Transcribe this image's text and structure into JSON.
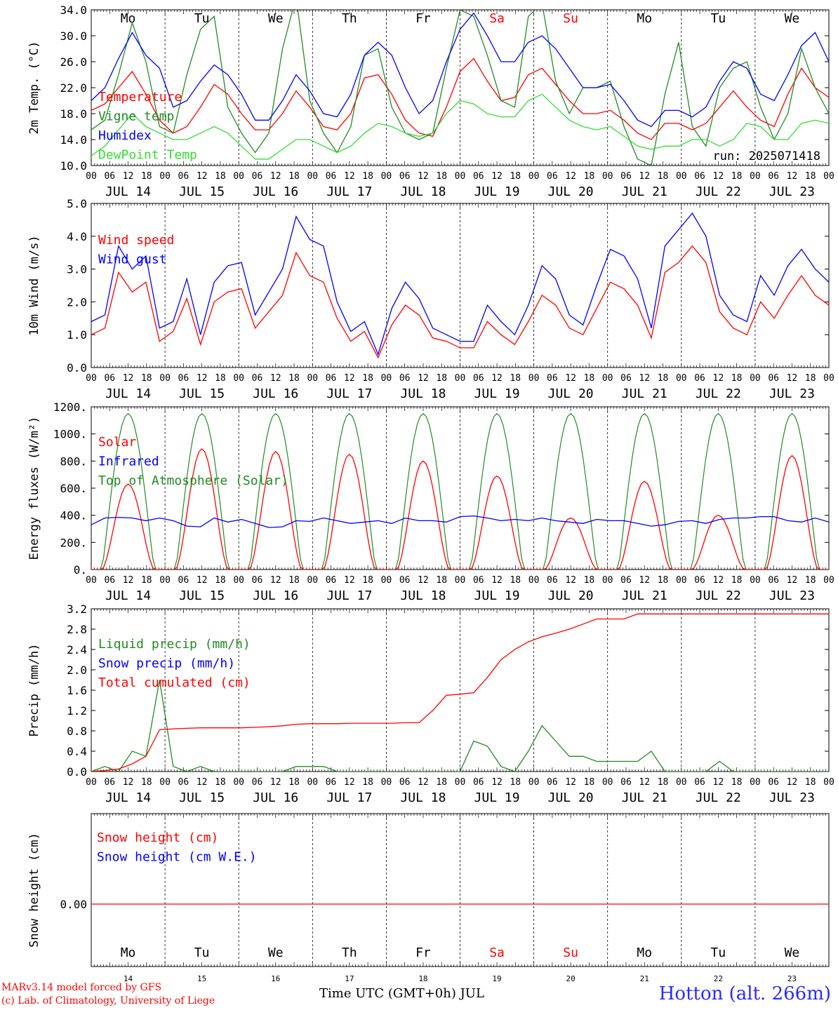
{
  "chart_data": [
    {
      "type": "line",
      "ylabel": "2m Temp. (°C)",
      "ylim": [
        10,
        34
      ],
      "yticks": [
        "34.0",
        "30.0",
        "26.0",
        "22.0",
        "18.0",
        "14.0",
        "10.0"
      ],
      "weekdays": [
        {
          "label": "Mo",
          "color": "#000000"
        },
        {
          "label": "Tu",
          "color": "#000000"
        },
        {
          "label": "We",
          "color": "#000000"
        },
        {
          "label": "Th",
          "color": "#000000"
        },
        {
          "label": "Fr",
          "color": "#000000"
        },
        {
          "label": "Sa",
          "color": "#ff0000"
        },
        {
          "label": "Su",
          "color": "#ff0000"
        },
        {
          "label": "Mo",
          "color": "#000000"
        },
        {
          "label": "Tu",
          "color": "#000000"
        },
        {
          "label": "We",
          "color": "#000000"
        }
      ],
      "annotation": "run: 2025071418",
      "series": [
        {
          "name": "Temperature",
          "color": "#ff0000",
          "values": [
            18.5,
            19.5,
            22,
            24.5,
            21,
            17,
            15,
            16,
            19,
            22.5,
            21,
            18,
            15.5,
            15.5,
            18,
            21.5,
            19,
            16,
            15.5,
            18,
            23.5,
            24,
            21,
            17,
            15,
            14.5,
            19,
            24.5,
            26.5,
            23,
            20,
            20.5,
            24,
            25,
            22.5,
            20,
            18,
            18,
            18.5,
            17,
            15,
            14,
            16.5,
            16.5,
            15.5,
            16.5,
            19,
            21.5,
            19,
            17,
            16,
            21,
            25,
            22,
            20.5
          ]
        },
        {
          "name": "Vigne temp",
          "color": "#228b22",
          "values": [
            15.5,
            17,
            24,
            32,
            26,
            16,
            15,
            24,
            31,
            33,
            19,
            15,
            12,
            15,
            28,
            36,
            20,
            15,
            12,
            16,
            27,
            28,
            19,
            15,
            14,
            15,
            25,
            34,
            33,
            27,
            20,
            19,
            33,
            35,
            23,
            18,
            22,
            22,
            23,
            16,
            11,
            10,
            21,
            29,
            16,
            13,
            22,
            25,
            26,
            19,
            14,
            18,
            28,
            22,
            18
          ]
        },
        {
          "name": "Humidex",
          "color": "#0000ff",
          "values": [
            20,
            22,
            26.5,
            30.5,
            27,
            25,
            19,
            20,
            23,
            25.5,
            24,
            21,
            17,
            17,
            20,
            24,
            21.5,
            18,
            17.5,
            21,
            27,
            29,
            27,
            22,
            18,
            20,
            26,
            31,
            33.5,
            30,
            26,
            26,
            29,
            30,
            28,
            25,
            22,
            22,
            22.5,
            20,
            17,
            16,
            18.5,
            18.5,
            17.5,
            19,
            23,
            26,
            25,
            21,
            20,
            24,
            28.5,
            30.5,
            26
          ]
        },
        {
          "name": "DewPoint Temp",
          "color": "#33dd33",
          "values": [
            11.5,
            13,
            15.5,
            18,
            16,
            15,
            14,
            14,
            15,
            16,
            15,
            13,
            11,
            11,
            12.5,
            14,
            14,
            13,
            12,
            13,
            15,
            16.5,
            16,
            15,
            14.5,
            15,
            18,
            20,
            19.5,
            18,
            17.5,
            17.5,
            20,
            21,
            19,
            17,
            16,
            15.5,
            16,
            14.5,
            13,
            12.5,
            13,
            13,
            14,
            14,
            13,
            14,
            16.5,
            16,
            14,
            14,
            16.5,
            17,
            16.5
          ]
        }
      ]
    },
    {
      "type": "line",
      "ylabel": "10m Wind (m/s)",
      "ylim": [
        0,
        5
      ],
      "yticks": [
        "5.0",
        "4.0",
        "3.0",
        "2.0",
        "1.0",
        "0.0"
      ],
      "series": [
        {
          "name": "Wind speed",
          "color": "#ff0000",
          "values": [
            1,
            1.2,
            2.9,
            2.3,
            2.6,
            0.8,
            1.1,
            2.1,
            0.7,
            2.0,
            2.3,
            2.4,
            1.2,
            1.7,
            2.2,
            3.5,
            2.8,
            2.6,
            1.5,
            0.8,
            1.1,
            0.3,
            1.3,
            1.9,
            1.6,
            0.9,
            0.8,
            0.6,
            0.6,
            1.4,
            1.0,
            0.7,
            1.4,
            2.2,
            1.9,
            1.2,
            1.0,
            1.8,
            2.6,
            2.4,
            1.9,
            0.9,
            2.9,
            3.2,
            3.7,
            3.2,
            1.7,
            1.2,
            1.0,
            2.0,
            1.5,
            2.2,
            2.8,
            2.2,
            1.9
          ]
        },
        {
          "name": "Wind gust",
          "color": "#0000ff",
          "values": [
            1.4,
            1.6,
            3.7,
            3.0,
            3.4,
            1.2,
            1.4,
            2.7,
            1.0,
            2.6,
            3.1,
            3.2,
            1.6,
            2.3,
            3.0,
            4.6,
            3.9,
            3.7,
            2.0,
            1.1,
            1.4,
            0.4,
            1.8,
            2.6,
            2.1,
            1.2,
            1.0,
            0.8,
            0.8,
            1.9,
            1.4,
            1.0,
            1.9,
            3.1,
            2.7,
            1.6,
            1.3,
            2.5,
            3.6,
            3.4,
            2.7,
            1.2,
            3.7,
            4.2,
            4.7,
            4.0,
            2.2,
            1.6,
            1.4,
            2.8,
            2.2,
            3.1,
            3.6,
            3.0,
            2.6
          ]
        }
      ]
    },
    {
      "type": "line",
      "ylabel": "Energy fluxes (W/m²)",
      "ylim": [
        0,
        1200
      ],
      "yticks": [
        "1200.",
        "1000.",
        "800.",
        "600.",
        "400.",
        "200.",
        "0."
      ],
      "series": [
        {
          "name": "Solar",
          "color": "#ff0000",
          "peaks": [
            630,
            890,
            870,
            850,
            800,
            690,
            380,
            650,
            400,
            840
          ]
        },
        {
          "name": "Infrared",
          "color": "#0000ff",
          "values": [
            330,
            380,
            385,
            380,
            360,
            380,
            360,
            320,
            315,
            380,
            350,
            370,
            340,
            310,
            315,
            360,
            355,
            380,
            360,
            340,
            350,
            360,
            340,
            380,
            360,
            360,
            350,
            390,
            395,
            380,
            360,
            370,
            360,
            380,
            360,
            350,
            340,
            370,
            360,
            360,
            340,
            320,
            330,
            355,
            360,
            340,
            370,
            380,
            380,
            390,
            390,
            360,
            350,
            380,
            350
          ]
        },
        {
          "name": "Top of Atmosphere (Solar)",
          "color": "#228b22",
          "peak": 1150
        }
      ]
    },
    {
      "type": "line",
      "ylabel": "Precip (mm/h)",
      "ylim": [
        0,
        3.2
      ],
      "yticks": [
        "3.2",
        "2.8",
        "2.4",
        "2.0",
        "1.6",
        "1.2",
        "0.8",
        "0.4",
        "0.0"
      ],
      "series": [
        {
          "name": "Liquid precip (mm/h)",
          "color": "#228b22",
          "values": [
            0,
            0.1,
            0,
            0.4,
            0.3,
            1.8,
            0.1,
            0,
            0.1,
            0,
            0,
            0,
            0,
            0,
            0,
            0.1,
            0.1,
            0.1,
            0,
            0,
            0,
            0,
            0,
            0,
            0,
            0,
            0,
            0,
            0.6,
            0.5,
            0.1,
            0,
            0.4,
            0.9,
            0.6,
            0.3,
            0.3,
            0.2,
            0.2,
            0.2,
            0.2,
            0.4,
            0,
            0,
            0,
            0,
            0.2,
            0,
            0,
            0,
            0,
            0,
            0,
            0,
            0
          ]
        },
        {
          "name": "Snow precip (mm/h)",
          "color": "#0000ff",
          "values": [
            0
          ]
        },
        {
          "name": "Total cumulated (cm)",
          "color": "#ff0000",
          "values": [
            0,
            0.02,
            0.05,
            0.15,
            0.3,
            0.82,
            0.84,
            0.85,
            0.86,
            0.86,
            0.86,
            0.86,
            0.87,
            0.88,
            0.9,
            0.93,
            0.94,
            0.94,
            0.94,
            0.95,
            0.95,
            0.95,
            0.95,
            0.96,
            0.96,
            1.2,
            1.5,
            1.52,
            1.55,
            1.85,
            2.2,
            2.4,
            2.55,
            2.65,
            2.72,
            2.8,
            2.9,
            3.0,
            3.0,
            3.0,
            3.1,
            3.1,
            3.1,
            3.1,
            3.1,
            3.1,
            3.1,
            3.1,
            3.1,
            3.1,
            3.1,
            3.1,
            3.1,
            3.1,
            3.1
          ]
        }
      ]
    },
    {
      "type": "line",
      "ylabel": "Snow height (cm)",
      "yticks": [
        "0.00"
      ],
      "series": [
        {
          "name": "Snow height (cm)",
          "color": "#ff0000",
          "values": [
            0
          ]
        },
        {
          "name": "Snow height (cm W.E.)",
          "color": "#0000ff",
          "values": [
            0
          ]
        }
      ],
      "weekdays": [
        {
          "label": "Mo",
          "color": "#000000"
        },
        {
          "label": "Tu",
          "color": "#000000"
        },
        {
          "label": "We",
          "color": "#000000"
        },
        {
          "label": "Th",
          "color": "#000000"
        },
        {
          "label": "Fr",
          "color": "#000000"
        },
        {
          "label": "Sa",
          "color": "#ff0000"
        },
        {
          "label": "Su",
          "color": "#ff0000"
        },
        {
          "label": "Mo",
          "color": "#000000"
        },
        {
          "label": "Tu",
          "color": "#000000"
        },
        {
          "label": "We",
          "color": "#000000"
        }
      ],
      "day_numbers": [
        "14",
        "15",
        "16",
        "17",
        "18",
        "19",
        "20",
        "21",
        "22",
        "23"
      ]
    }
  ],
  "x_axis": {
    "hour_labels": [
      "00",
      "06",
      "12",
      "18"
    ],
    "final_hour": "00",
    "day_labels": [
      "JUL 14",
      "JUL 15",
      "JUL 16",
      "JUL 17",
      "JUL 18",
      "JUL 19",
      "JUL 20",
      "JUL 21",
      "JUL 22",
      "JUL 23"
    ]
  },
  "footer": {
    "credit_line_1": "MARv3.14 model forced by GFS",
    "credit_line_2": "(c) Lab. of Climatology, University of Liege",
    "xlabel": "Time UTC (GMT+0h) JUL",
    "station": "Hotton (alt. 266m)"
  }
}
